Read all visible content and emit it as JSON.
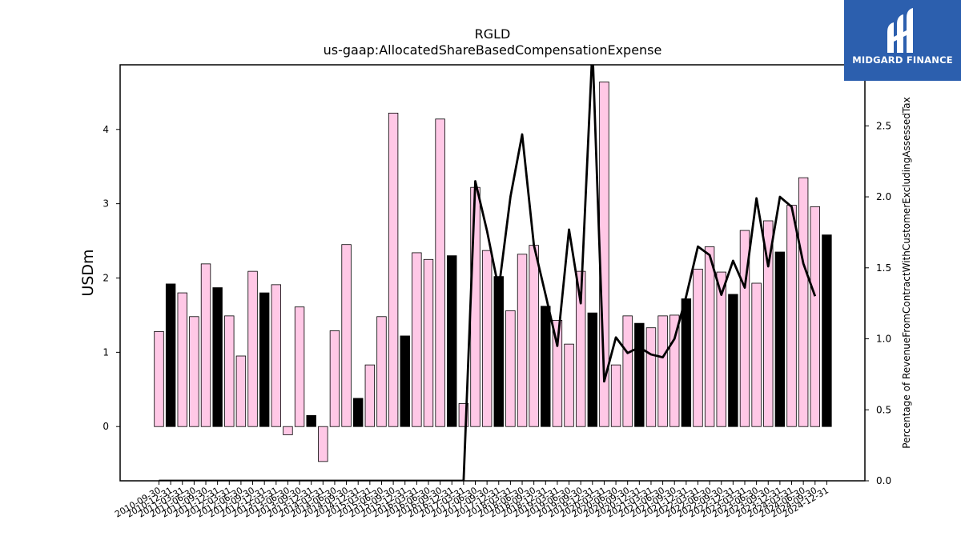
{
  "chart_data": {
    "type": "bar",
    "title": "RGLD",
    "subtitle": "us-gaap:AllocatedShareBasedCompensationExpense",
    "ylabel": "USDm",
    "y2label": "Percentage of RevenueFromContractWithCustomerExcludingAssessedTax",
    "ylim": [
      -0.73,
      4.87
    ],
    "y2lim": [
      0.0,
      2.93
    ],
    "yticks": [
      0,
      1,
      2,
      3,
      4
    ],
    "y2ticks": [
      0.0,
      0.5,
      1.0,
      1.5,
      2.0,
      2.5
    ],
    "grid": false,
    "categories": [
      "2010-09-30",
      "2010-12-31",
      "2011-03-31",
      "2011-06-30",
      "2011-09-30",
      "2011-12-31",
      "2012-03-31",
      "2012-06-30",
      "2012-09-30",
      "2012-12-31",
      "2013-03-31",
      "2013-06-30",
      "2013-09-30",
      "2013-12-31",
      "2014-03-31",
      "2014-06-30",
      "2014-09-30",
      "2014-12-31",
      "2015-03-31",
      "2015-06-30",
      "2015-09-30",
      "2015-12-31",
      "2016-03-31",
      "2016-06-30",
      "2016-09-30",
      "2016-12-31",
      "2017-03-31",
      "2017-06-30",
      "2017-09-30",
      "2017-12-31",
      "2018-03-31",
      "2018-06-30",
      "2018-09-30",
      "2018-12-31",
      "2019-03-31",
      "2019-06-30",
      "2019-09-30",
      "2019-12-31",
      "2020-03-31",
      "2020-06-30",
      "2020-09-30",
      "2020-12-31",
      "2021-03-31",
      "2021-06-30",
      "2021-09-30",
      "2021-12-31",
      "2022-03-31",
      "2022-06-30",
      "2022-09-30",
      "2022-12-31",
      "2023-03-31",
      "2023-06-30",
      "2023-09-30",
      "2023-12-31",
      "2024-03-31",
      "2024-06-30",
      "2024-09-30",
      "2024-12-31"
    ],
    "series": [
      {
        "type": "bar",
        "values": [
          1.28,
          1.92,
          1.8,
          1.48,
          2.19,
          1.87,
          1.49,
          0.95,
          2.09,
          1.8,
          1.91,
          -0.11,
          1.61,
          0.15,
          -0.47,
          1.29,
          2.45,
          0.38,
          0.83,
          1.48,
          4.22,
          1.22,
          2.34,
          2.25,
          4.14,
          2.3,
          0.31,
          3.22,
          2.37,
          2.02,
          1.56,
          2.32,
          2.44,
          1.62,
          1.43,
          1.11,
          2.09,
          1.53,
          4.64,
          0.83,
          1.49,
          1.39,
          1.33,
          1.49,
          1.5,
          1.72,
          2.12,
          2.42,
          2.08,
          1.78,
          2.64,
          1.93,
          2.77,
          2.35,
          2.98,
          3.35,
          2.96,
          2.58
        ],
        "highlight": [
          false,
          true,
          false,
          false,
          false,
          true,
          false,
          false,
          false,
          true,
          false,
          false,
          false,
          true,
          false,
          false,
          false,
          true,
          false,
          false,
          false,
          true,
          false,
          false,
          false,
          true,
          false,
          false,
          false,
          true,
          false,
          false,
          false,
          true,
          false,
          false,
          false,
          true,
          false,
          false,
          false,
          true,
          false,
          false,
          false,
          true,
          false,
          false,
          false,
          true,
          false,
          false,
          false,
          true,
          false,
          false,
          false,
          true
        ],
        "color": "#ffc8e6",
        "highlight_color": "#000000"
      },
      {
        "type": "line",
        "axis": "right",
        "values": [
          0,
          0,
          0,
          0,
          0,
          0,
          0,
          0,
          0,
          0,
          0,
          0,
          0,
          0,
          0,
          0,
          0,
          0,
          0,
          0,
          0,
          0,
          0,
          0,
          0,
          0,
          0,
          2.11,
          1.76,
          1.35,
          2.0,
          2.44,
          1.66,
          1.31,
          0.95,
          1.77,
          1.25,
          3.05,
          0.7,
          1.01,
          0.9,
          0.94,
          0.89,
          0.87,
          1.0,
          1.3,
          1.65,
          1.59,
          1.31,
          1.55,
          1.36,
          1.99,
          1.51,
          2.0,
          1.93,
          1.53,
          1.3,
          null
        ],
        "color": "#000000"
      }
    ]
  },
  "logo": {
    "text": "MIDGARD FINANCE",
    "background": "#2c5fae"
  }
}
